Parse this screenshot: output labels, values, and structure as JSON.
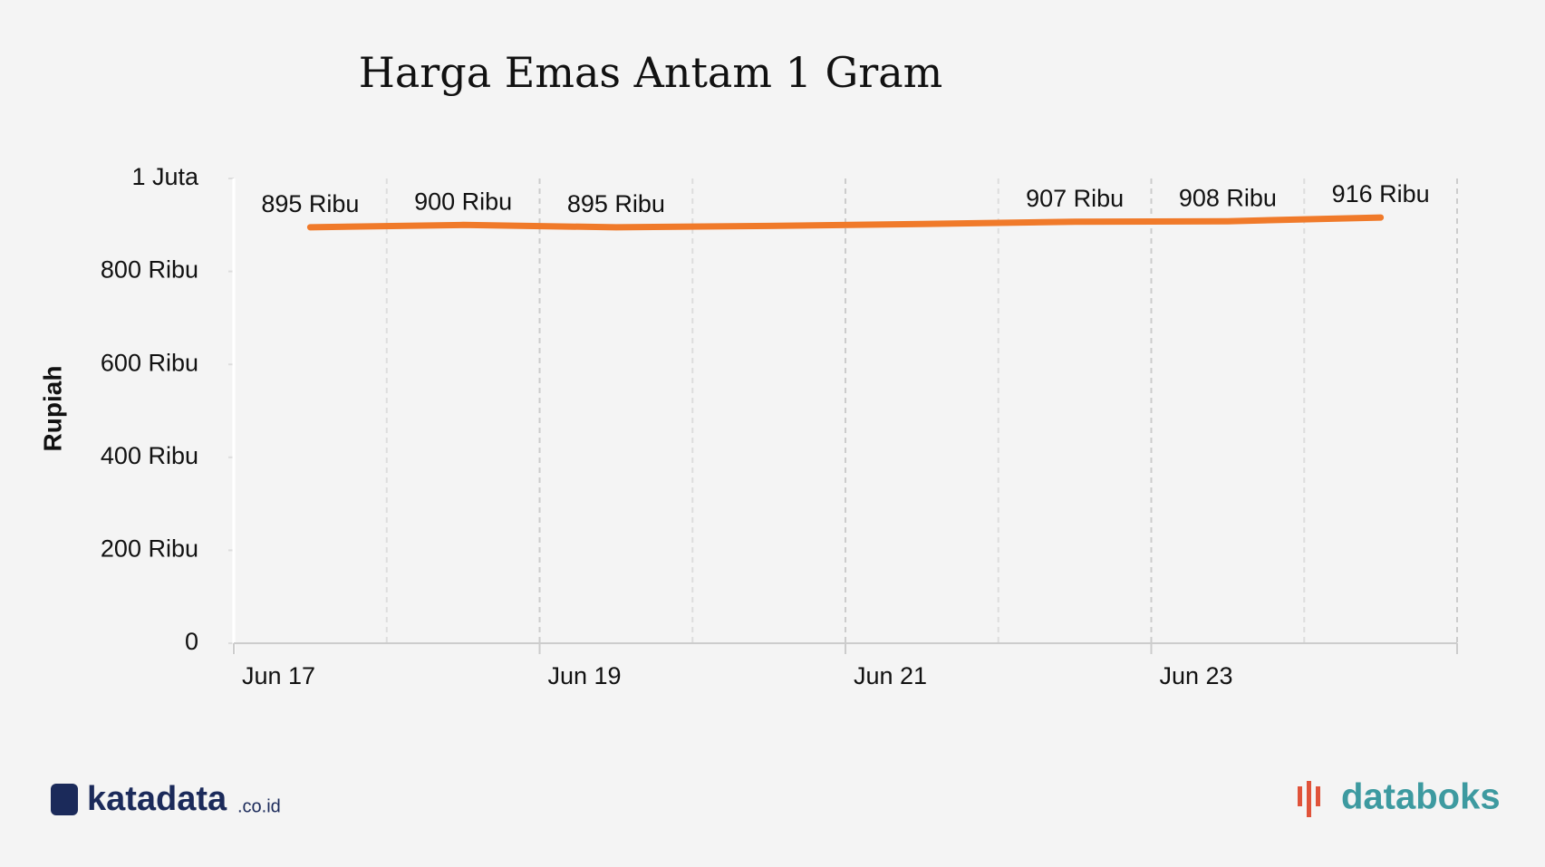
{
  "chart_data": {
    "type": "line",
    "title": "Harga Emas Antam 1 Gram",
    "y_label": "Rupiah",
    "categories": [
      "Jun 17",
      null,
      "Jun 19",
      null,
      "Jun 21",
      null,
      "Jun 23",
      null
    ],
    "series": [
      {
        "name": "Harga",
        "color": "#f07a2a",
        "values": [
          895000,
          900000,
          895000,
          898000,
          902000,
          907000,
          908000,
          916000
        ],
        "value_labels": [
          "895 Ribu",
          "900 Ribu",
          "895 Ribu",
          null,
          null,
          "907 Ribu",
          "908 Ribu",
          "916 Ribu"
        ]
      }
    ],
    "ylim": [
      0,
      1000000
    ],
    "yticks": [
      0,
      {
        "value": 200000,
        "label": "200 Ribu"
      },
      {
        "value": 400000,
        "label": "400 Ribu"
      },
      {
        "value": 600000,
        "label": "600 Ribu"
      },
      {
        "value": 800000,
        "label": "800 Ribu"
      },
      {
        "value": 1000000,
        "label": "1 Juta"
      }
    ],
    "grid": true
  },
  "footer": {
    "left_logo": "katadata",
    "left_suffix": ".co.id",
    "right_logo": "databoks"
  }
}
